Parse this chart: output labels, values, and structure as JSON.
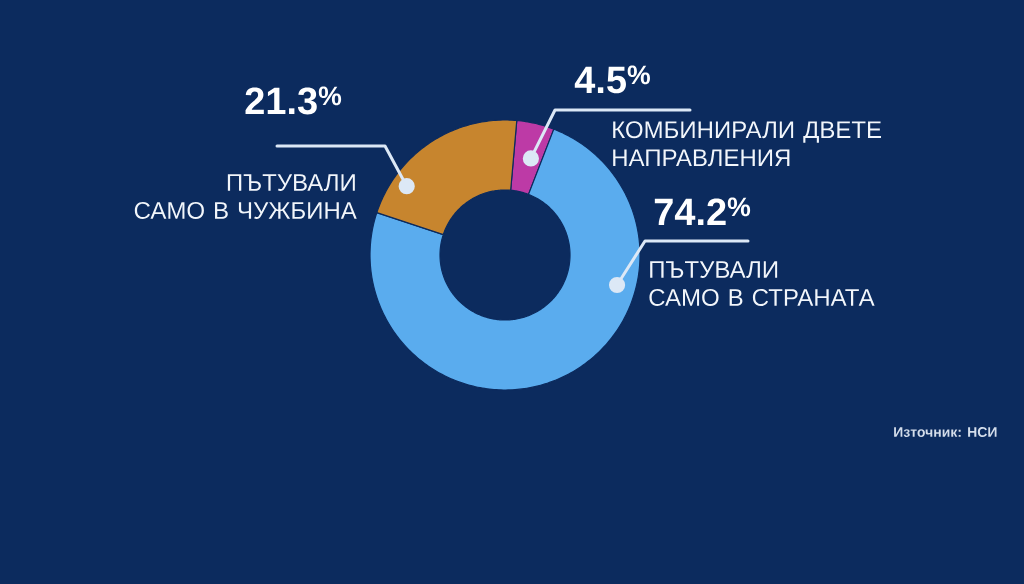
{
  "chart_data": {
    "type": "donut",
    "categories": [
      "КОМБИНИРАЛИ ДВЕТЕ НАПРАВЛЕНИЯ",
      "ПЪТУВАЛИ САМО В СТРАНАТА",
      "ПЪТУВАЛИ САМО В ЧУЖБИНА"
    ],
    "values": [
      4.5,
      74.2,
      21.3
    ],
    "colors": [
      "#bd3aa6",
      "#5aacee",
      "#c7852e"
    ],
    "value_labels": [
      "4.5$^{%}$",
      "74.2$^{%}$",
      "21.3$^{%}$"
    ],
    "annotations": [
      "Източник: НСИ"
    ]
  }
}
